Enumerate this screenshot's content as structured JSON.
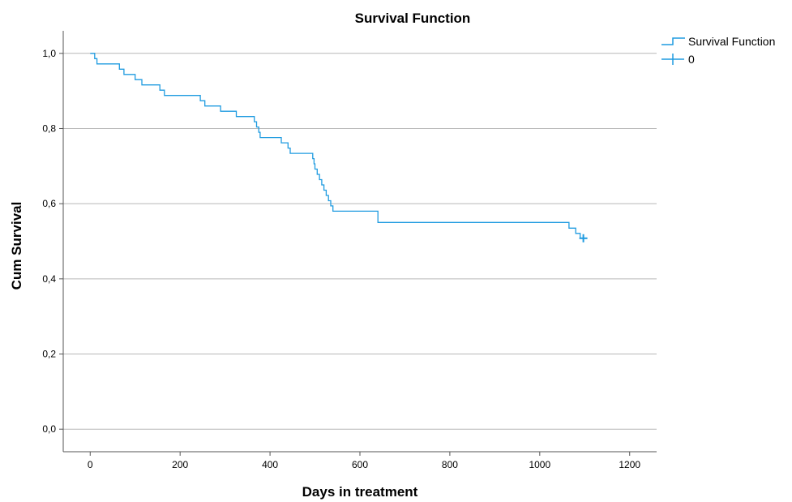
{
  "chart_data": {
    "type": "line",
    "title": "Survival Function",
    "xlabel": "Days in treatment",
    "ylabel": "Cum Survival",
    "xlim": [
      -60,
      1260
    ],
    "ylim": [
      -0.06,
      1.06
    ],
    "x_ticks": [
      0,
      200,
      400,
      600,
      800,
      1000,
      1200
    ],
    "x_tick_labels": [
      "0",
      "200",
      "400",
      "600",
      "800",
      "1000",
      "1200"
    ],
    "y_ticks": [
      0.0,
      0.2,
      0.4,
      0.6,
      0.8,
      1.0
    ],
    "y_tick_labels": [
      "0,0",
      "0,2",
      "0,4",
      "0,6",
      "0,8",
      "1,0"
    ],
    "grid": "horizontal",
    "legend_position": "top-right",
    "line_color": "#1f9be0",
    "series": [
      {
        "name": "Survival Function",
        "step": true,
        "points": [
          [
            0,
            1.0
          ],
          [
            10,
            0.986
          ],
          [
            15,
            0.972
          ],
          [
            65,
            0.958
          ],
          [
            75,
            0.944
          ],
          [
            100,
            0.93
          ],
          [
            115,
            0.916
          ],
          [
            155,
            0.902
          ],
          [
            165,
            0.888
          ],
          [
            245,
            0.874
          ],
          [
            255,
            0.86
          ],
          [
            290,
            0.846
          ],
          [
            325,
            0.832
          ],
          [
            365,
            0.818
          ],
          [
            370,
            0.804
          ],
          [
            375,
            0.79
          ],
          [
            378,
            0.776
          ],
          [
            425,
            0.762
          ],
          [
            440,
            0.748
          ],
          [
            445,
            0.734
          ],
          [
            495,
            0.72
          ],
          [
            498,
            0.706
          ],
          [
            500,
            0.692
          ],
          [
            505,
            0.678
          ],
          [
            510,
            0.664
          ],
          [
            515,
            0.65
          ],
          [
            520,
            0.636
          ],
          [
            525,
            0.622
          ],
          [
            530,
            0.608
          ],
          [
            535,
            0.594
          ],
          [
            540,
            0.58
          ],
          [
            640,
            0.55
          ],
          [
            1065,
            0.535
          ],
          [
            1080,
            0.521
          ],
          [
            1090,
            0.508
          ],
          [
            1097,
            0.508
          ]
        ]
      }
    ],
    "censored": {
      "name": "0",
      "points": [
        [
          1097,
          0.508
        ]
      ]
    }
  }
}
